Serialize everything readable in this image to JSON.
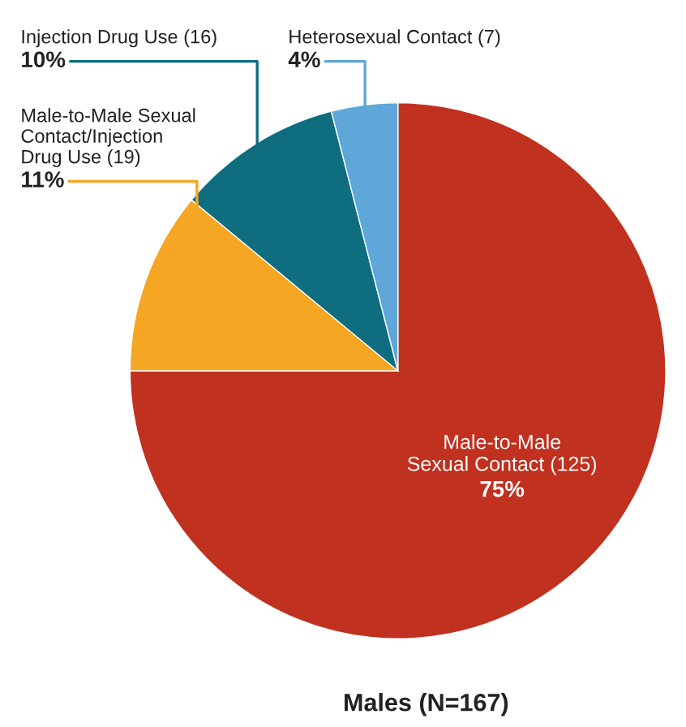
{
  "chart_data": {
    "type": "pie",
    "title": "Males (N=167)",
    "categories": [
      "Male-to-Male\nSexual Contact (125)",
      "Male-to-Male Sexual\nContact/Injection\nDrug Use (19)",
      "Injection Drug Use (16)",
      "Heterosexual Contact (7)"
    ],
    "values": [
      75,
      11,
      10,
      4
    ],
    "value_labels": [
      "75%",
      "11%",
      "10%",
      "4%"
    ],
    "colors": [
      "#c0311f",
      "#f5a623",
      "#0e6e80",
      "#5ea7d8"
    ],
    "legend": false
  }
}
